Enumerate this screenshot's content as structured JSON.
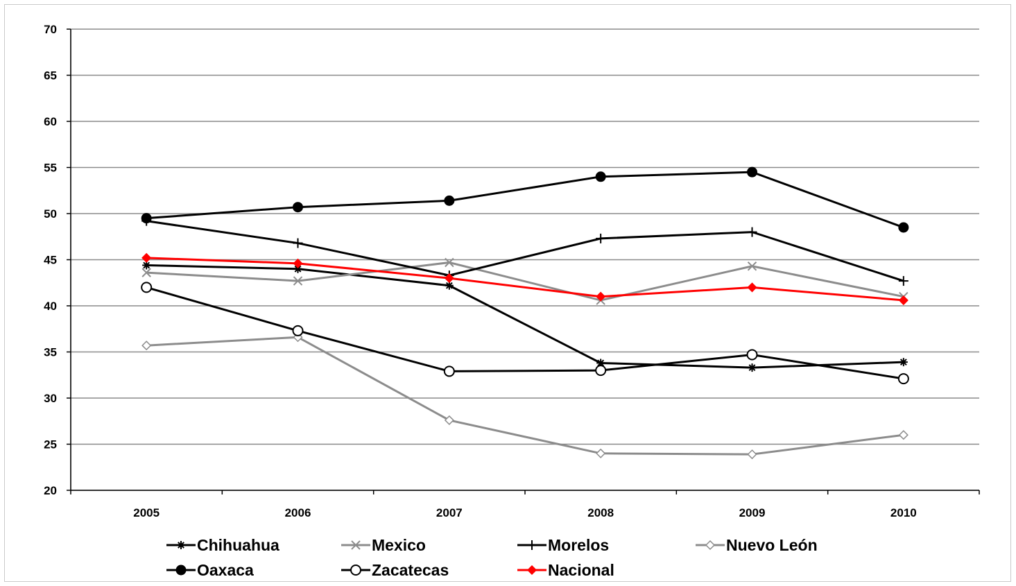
{
  "chart_data": {
    "type": "line",
    "title": "",
    "xlabel": "",
    "ylabel": "",
    "categories": [
      "2005",
      "2006",
      "2007",
      "2008",
      "2009",
      "2010"
    ],
    "ylim": [
      20,
      70
    ],
    "yticks": [
      20,
      25,
      30,
      35,
      40,
      45,
      50,
      55,
      60,
      65,
      70
    ],
    "grid": true,
    "legend_position": "bottom",
    "series": [
      {
        "name": "Chihuahua",
        "color": "#000000",
        "marker": "asterisk",
        "values": [
          44.4,
          44.0,
          42.2,
          33.8,
          33.3,
          33.9
        ]
      },
      {
        "name": "Mexico",
        "color": "#8c8c8c",
        "marker": "x",
        "values": [
          43.6,
          42.7,
          44.7,
          40.6,
          44.3,
          41.0
        ]
      },
      {
        "name": "Morelos",
        "color": "#000000",
        "marker": "plus",
        "values": [
          49.2,
          46.8,
          43.3,
          47.3,
          48.0,
          42.7
        ]
      },
      {
        "name": "Nuevo León",
        "color": "#8c8c8c",
        "marker": "diamond-open",
        "values": [
          35.7,
          36.6,
          27.6,
          24.0,
          23.9,
          26.0
        ]
      },
      {
        "name": "Oaxaca",
        "color": "#000000",
        "marker": "circle-filled",
        "values": [
          49.5,
          50.7,
          51.4,
          54.0,
          54.5,
          48.5
        ]
      },
      {
        "name": "Zacatecas",
        "color": "#000000",
        "marker": "circle-open",
        "values": [
          42.0,
          37.3,
          32.9,
          33.0,
          34.7,
          32.1
        ]
      },
      {
        "name": "Nacional",
        "color": "#ff0000",
        "marker": "diamond-filled",
        "values": [
          45.2,
          44.6,
          43.0,
          41.0,
          42.0,
          40.6
        ]
      }
    ],
    "legend_rows": [
      [
        "Chihuahua",
        "Mexico",
        "Morelos",
        "Nuevo León"
      ],
      [
        "Oaxaca",
        "Zacatecas",
        "Nacional"
      ]
    ]
  }
}
